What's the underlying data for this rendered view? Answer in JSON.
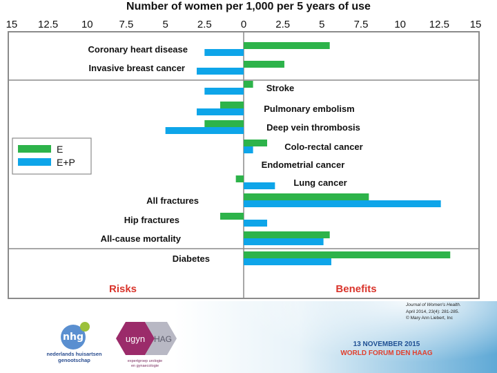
{
  "colors": {
    "e": "#2db34a",
    "ep": "#0ea5e9",
    "frame": "#8a8a8a",
    "text": "#111111",
    "labels_red": "#d9342b"
  },
  "chart_data": {
    "type": "bar",
    "orientation": "horizontal",
    "title": "Number of women per 1,000 per 5 years of use",
    "x_ticks": [
      "15",
      "12.5",
      "10",
      "7.5",
      "5",
      "2.5",
      "0",
      "2.5",
      "5",
      "7.5",
      "10",
      "12.5",
      "15"
    ],
    "xlim": [
      -15,
      15
    ],
    "categories": [
      "Coronary heart disease",
      "Invasive breast cancer",
      "Stroke",
      "Pulmonary embolism",
      "Deep vein thrombosis",
      "Colo-rectal cancer",
      "Endometrial cancer",
      "Lung cancer",
      "All fractures",
      "Hip fractures",
      "All-cause mortality",
      "Diabetes"
    ],
    "series": [
      {
        "name": "E",
        "values": [
          5.5,
          2.6,
          0.6,
          -1.5,
          -2.5,
          1.5,
          null,
          -0.5,
          8.0,
          -1.5,
          5.5,
          13.2
        ]
      },
      {
        "name": "E+P",
        "values": [
          -2.5,
          -3.0,
          -2.5,
          -3.0,
          -5.0,
          0.6,
          null,
          2.0,
          12.6,
          1.5,
          5.1,
          5.6
        ]
      }
    ],
    "legend_position": "left",
    "section_labels": {
      "left": "Risks",
      "right": "Benefits"
    },
    "grid": false
  },
  "footer": {
    "citation_journal": "Journal of Women's Health.",
    "citation_issue": "April 2014, 23(4): 281-285.",
    "citation_copy": "© Mary Ann Liebert, Inc",
    "nhg_mark": "nhg",
    "nhg_line1": "nederlands huisartsen",
    "nhg_line2": "genootschap",
    "ugyn_word": "ugyn",
    "hag_word": "HAG",
    "ugyn_sub1": "expertgroep urologie",
    "ugyn_sub2": "en gynaecologie",
    "event_date": "13 NOVEMBER 2015",
    "event_name": "WORLD FORUM DEN HAAG"
  }
}
